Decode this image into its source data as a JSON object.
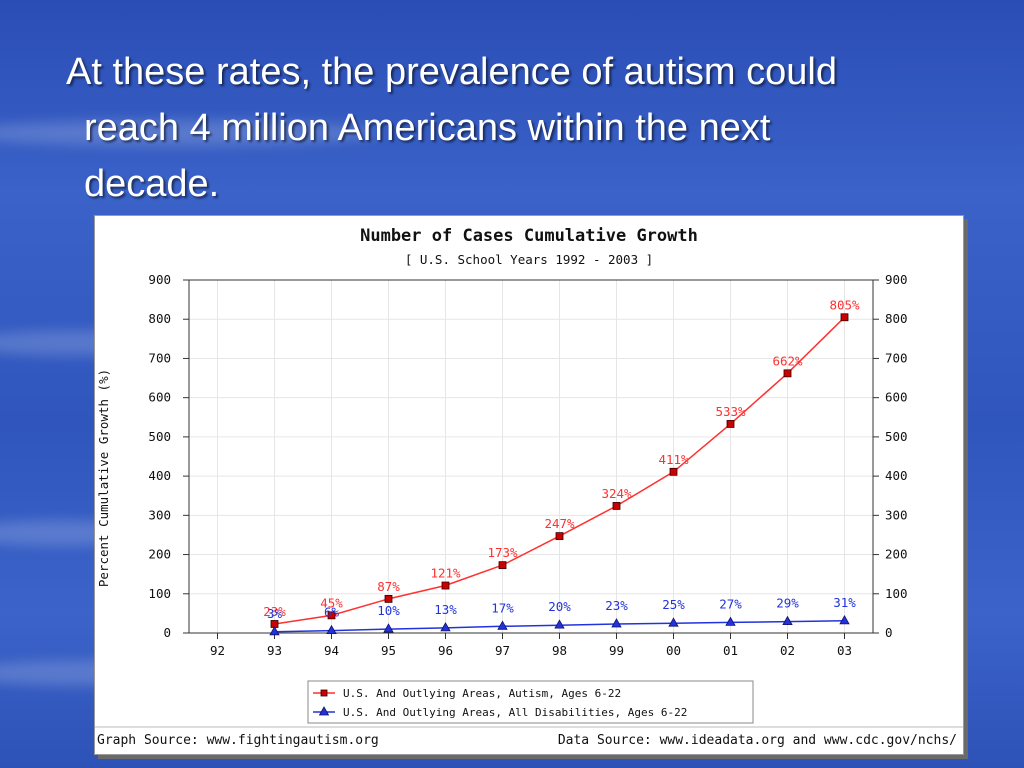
{
  "slide": {
    "headline_lines": [
      "At these rates, the prevalence of autism could",
      "reach 4 million Americans within the next",
      "decade."
    ]
  },
  "chart_data": {
    "type": "line",
    "title": "Number of Cases Cumulative Growth",
    "subtitle": "[ U.S. School Years 1992 - 2003 ]",
    "ylabel": "Percent Cumulative Growth (%)",
    "xlabel": "",
    "categories": [
      "92",
      "93",
      "94",
      "95",
      "96",
      "97",
      "98",
      "99",
      "00",
      "01",
      "02",
      "03"
    ],
    "ylim": [
      0,
      900
    ],
    "yticks": [
      0,
      100,
      200,
      300,
      400,
      500,
      600,
      700,
      800,
      900
    ],
    "grid": true,
    "legend_position": "bottom-center",
    "series": [
      {
        "name": "U.S. And Outlying Areas, Autism, Ages 6-22",
        "color": "#ff3030",
        "marker": "square",
        "values": [
          null,
          23,
          45,
          87,
          121,
          173,
          247,
          324,
          411,
          533,
          662,
          805
        ],
        "labels": [
          "",
          "23%",
          "45%",
          "87%",
          "121%",
          "173%",
          "247%",
          "324%",
          "411%",
          "533%",
          "662%",
          "805%"
        ]
      },
      {
        "name": "U.S. And Outlying Areas, All Disabilities, Ages 6-22",
        "color": "#2233dd",
        "marker": "triangle",
        "values": [
          null,
          3,
          6,
          10,
          13,
          17,
          20,
          23,
          25,
          27,
          29,
          31
        ],
        "labels": [
          "",
          "3%",
          "6%",
          "10%",
          "13%",
          "17%",
          "20%",
          "23%",
          "25%",
          "27%",
          "29%",
          "31%"
        ]
      }
    ],
    "footer_left": "Graph Source: www.fightingautism.org",
    "footer_right": "Data Source: www.ideadata.org and www.cdc.gov/nchs/"
  }
}
